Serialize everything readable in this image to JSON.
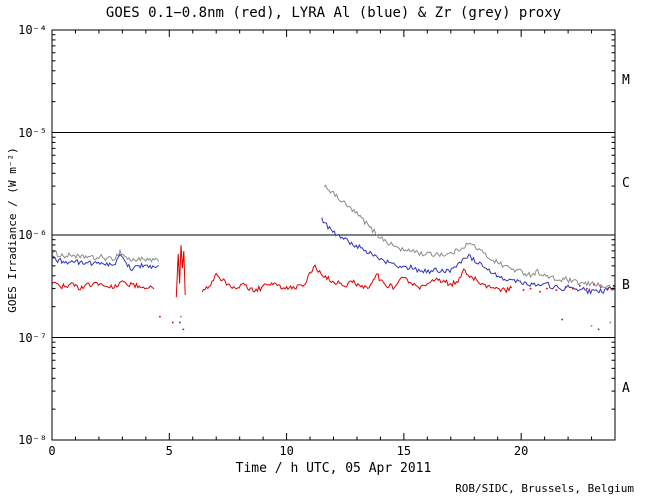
{
  "credit": "ROB/SIDC, Brussels, Belgium",
  "chart_data": {
    "type": "line",
    "title": "GOES 0.1−0.8nm (red), LYRA Al (blue) & Zr (grey) proxy",
    "xlabel": "Time / h UTC, 05 Apr 2011",
    "ylabel": "GOES Irradiance / (W m⁻²)",
    "xlim": [
      0,
      24
    ],
    "ylim": [
      1e-08,
      0.0001
    ],
    "grid": false,
    "legend": "none (series identified by colors in title)",
    "xticks": {
      "major": [
        {
          "t": 0,
          "label": "0"
        },
        {
          "t": 5,
          "label": "5"
        },
        {
          "t": 10,
          "label": "10"
        },
        {
          "t": 15,
          "label": "15"
        },
        {
          "t": 20,
          "label": "20"
        }
      ],
      "minor_step": 1
    },
    "yticks": [
      {
        "exp": -8,
        "label": "10⁻⁸"
      },
      {
        "exp": -7,
        "label": "10⁻⁷"
      },
      {
        "exp": -6,
        "label": "10⁻⁶"
      },
      {
        "exp": -5,
        "label": "10⁻⁵"
      },
      {
        "exp": -4,
        "label": "10⁻⁴"
      }
    ],
    "hlines": [
      1e-05,
      1e-06,
      1e-07
    ],
    "flare_class_labels": [
      {
        "label": "M",
        "v": 3.162e-05
      },
      {
        "label": "C",
        "v": 3.162e-06
      },
      {
        "label": "B",
        "v": 3.162e-07
      },
      {
        "label": "A",
        "v": 3.162e-08
      }
    ],
    "series": [
      {
        "name": "LYRA Zr proxy",
        "color": "#8c8c8c",
        "segments": [
          [
            [
              0.0,
              6.8e-07
            ],
            [
              0.3,
              6.4e-07
            ],
            [
              0.6,
              6.2e-07
            ],
            [
              0.9,
              6.4e-07
            ],
            [
              1.2,
              6e-07
            ],
            [
              1.5,
              6.2e-07
            ],
            [
              1.8,
              5.9e-07
            ],
            [
              2.1,
              6.1e-07
            ],
            [
              2.4,
              5.8e-07
            ],
            [
              2.7,
              6e-07
            ],
            [
              2.9,
              6.9e-07
            ],
            [
              3.1,
              6.2e-07
            ],
            [
              3.4,
              5.6e-07
            ],
            [
              3.7,
              5.9e-07
            ],
            [
              4.0,
              5.6e-07
            ],
            [
              4.3,
              5.7e-07
            ],
            [
              4.55,
              5.5e-07
            ]
          ],
          [
            [
              11.6,
              3.1e-06
            ],
            [
              11.8,
              2.8e-06
            ],
            [
              12.0,
              2.5e-06
            ],
            [
              12.2,
              2.3e-06
            ],
            [
              12.4,
              2.1e-06
            ],
            [
              12.6,
              1.9e-06
            ],
            [
              12.8,
              1.75e-06
            ],
            [
              13.0,
              1.6e-06
            ],
            [
              13.2,
              1.45e-06
            ],
            [
              13.4,
              1.3e-06
            ],
            [
              13.6,
              1.15e-06
            ],
            [
              13.8,
              1.05e-06
            ],
            [
              14.0,
              9.5e-07
            ],
            [
              14.2,
              8.8e-07
            ],
            [
              14.4,
              8.2e-07
            ],
            [
              14.6,
              7.8e-07
            ],
            [
              14.8,
              7.4e-07
            ],
            [
              15.0,
              7.1e-07
            ],
            [
              15.2,
              6.9e-07
            ],
            [
              15.4,
              7.2e-07
            ],
            [
              15.6,
              6.7e-07
            ],
            [
              15.8,
              6.5e-07
            ],
            [
              16.0,
              6.6e-07
            ],
            [
              16.2,
              6.4e-07
            ],
            [
              16.4,
              6.6e-07
            ],
            [
              16.6,
              6.5e-07
            ],
            [
              16.8,
              6.4e-07
            ],
            [
              17.0,
              6.6e-07
            ],
            [
              17.2,
              6.9e-07
            ],
            [
              17.4,
              7.4e-07
            ],
            [
              17.6,
              7.9e-07
            ],
            [
              17.8,
              8.2e-07
            ],
            [
              18.0,
              7.8e-07
            ],
            [
              18.2,
              7.2e-07
            ],
            [
              18.4,
              6.6e-07
            ],
            [
              18.6,
              6.1e-07
            ],
            [
              18.8,
              5.7e-07
            ],
            [
              19.0,
              5.4e-07
            ],
            [
              19.2,
              5.1e-07
            ],
            [
              19.4,
              4.9e-07
            ],
            [
              19.6,
              4.7e-07
            ],
            [
              19.8,
              4.5e-07
            ],
            [
              20.1,
              4.3e-07
            ],
            [
              20.4,
              4.1e-07
            ],
            [
              20.7,
              4.4e-07
            ],
            [
              21.0,
              4e-07
            ],
            [
              21.3,
              3.8e-07
            ],
            [
              21.6,
              3.6e-07
            ],
            [
              21.9,
              3.7e-07
            ],
            [
              22.2,
              3.5e-07
            ],
            [
              22.5,
              3.4e-07
            ],
            [
              22.8,
              3.3e-07
            ],
            [
              23.1,
              3.4e-07
            ],
            [
              23.4,
              3.2e-07
            ],
            [
              23.7,
              3.1e-07
            ],
            [
              24.0,
              3e-07
            ]
          ]
        ],
        "scatter": [
          [
            5.5,
            1.6e-07
          ],
          [
            23.0,
            1.3e-07
          ],
          [
            23.8,
            1.4e-07
          ]
        ]
      },
      {
        "name": "LYRA Al proxy",
        "color": "#3333bb",
        "segments": [
          [
            [
              0.0,
              6e-07
            ],
            [
              0.3,
              5.6e-07
            ],
            [
              0.6,
              5.4e-07
            ],
            [
              0.9,
              5.6e-07
            ],
            [
              1.2,
              5.3e-07
            ],
            [
              1.5,
              5.5e-07
            ],
            [
              1.8,
              5.2e-07
            ],
            [
              2.1,
              5.4e-07
            ],
            [
              2.4,
              5.1e-07
            ],
            [
              2.7,
              5.3e-07
            ],
            [
              2.9,
              6.2e-07
            ],
            [
              3.1,
              5.5e-07
            ],
            [
              3.4,
              4.7e-07
            ],
            [
              3.7,
              5.1e-07
            ],
            [
              4.0,
              4.9e-07
            ],
            [
              4.3,
              5e-07
            ],
            [
              4.55,
              4.8e-07
            ]
          ],
          [
            [
              11.5,
              1.4e-06
            ],
            [
              11.7,
              1.25e-06
            ],
            [
              11.9,
              1.12e-06
            ],
            [
              12.1,
              1.02e-06
            ],
            [
              12.3,
              9.5e-07
            ],
            [
              12.5,
              9e-07
            ],
            [
              12.7,
              8.5e-07
            ],
            [
              12.9,
              8e-07
            ],
            [
              13.1,
              7.6e-07
            ],
            [
              13.3,
              7.2e-07
            ],
            [
              13.5,
              6.8e-07
            ],
            [
              13.7,
              6.4e-07
            ],
            [
              13.9,
              6e-07
            ],
            [
              14.1,
              5.6e-07
            ],
            [
              14.3,
              5.4e-07
            ],
            [
              14.5,
              5.2e-07
            ],
            [
              14.7,
              5e-07
            ],
            [
              14.9,
              4.8e-07
            ],
            [
              15.1,
              4.7e-07
            ],
            [
              15.3,
              5e-07
            ],
            [
              15.5,
              4.6e-07
            ],
            [
              15.7,
              4.4e-07
            ],
            [
              15.9,
              4.5e-07
            ],
            [
              16.1,
              4.4e-07
            ],
            [
              16.3,
              4.6e-07
            ],
            [
              16.5,
              4.5e-07
            ],
            [
              16.7,
              4.4e-07
            ],
            [
              16.9,
              4.5e-07
            ],
            [
              17.1,
              4.7e-07
            ],
            [
              17.3,
              5.2e-07
            ],
            [
              17.5,
              5.8e-07
            ],
            [
              17.7,
              6.3e-07
            ],
            [
              17.9,
              5.9e-07
            ],
            [
              18.1,
              5.5e-07
            ],
            [
              18.3,
              5e-07
            ],
            [
              18.5,
              4.6e-07
            ],
            [
              18.7,
              4.3e-07
            ],
            [
              18.9,
              4.1e-07
            ],
            [
              19.1,
              3.9e-07
            ],
            [
              19.3,
              3.8e-07
            ],
            [
              19.5,
              3.7e-07
            ],
            [
              19.7,
              3.6e-07
            ],
            [
              19.9,
              3.5e-07
            ],
            [
              20.2,
              3.4e-07
            ],
            [
              20.5,
              3.3e-07
            ],
            [
              20.8,
              3.2e-07
            ],
            [
              21.1,
              3.3e-07
            ],
            [
              21.4,
              3.1e-07
            ],
            [
              21.7,
              3e-07
            ],
            [
              22.0,
              3.1e-07
            ],
            [
              22.3,
              2.9e-07
            ],
            [
              22.6,
              3e-07
            ],
            [
              22.9,
              2.8e-07
            ],
            [
              23.2,
              2.9e-07
            ],
            [
              23.5,
              2.8e-07
            ],
            [
              23.8,
              3e-07
            ],
            [
              24.0,
              2.9e-07
            ]
          ]
        ],
        "scatter": [
          [
            5.45,
            1.4e-07
          ],
          [
            5.6,
            1.2e-07
          ],
          [
            21.75,
            1.5e-07
          ],
          [
            23.3,
            1.2e-07
          ]
        ]
      },
      {
        "name": "GOES 0.1−0.8nm",
        "color": "#dd0000",
        "segments": [
          [
            [
              0.0,
              3.4e-07
            ],
            [
              0.3,
              3.2e-07
            ],
            [
              0.6,
              3.1e-07
            ],
            [
              0.9,
              3.3e-07
            ],
            [
              1.2,
              3e-07
            ],
            [
              1.5,
              3.2e-07
            ],
            [
              1.8,
              3.4e-07
            ],
            [
              2.1,
              3.3e-07
            ],
            [
              2.4,
              3.1e-07
            ],
            [
              2.7,
              3.2e-07
            ],
            [
              3.0,
              3.5e-07
            ],
            [
              3.3,
              3.3e-07
            ],
            [
              3.6,
              3.2e-07
            ],
            [
              3.9,
              3.1e-07
            ],
            [
              4.2,
              3.2e-07
            ],
            [
              4.35,
              3.1e-07
            ]
          ],
          [
            [
              5.3,
              2.4e-07
            ],
            [
              5.38,
              6.5e-07
            ],
            [
              5.44,
              3.2e-07
            ],
            [
              5.5,
              8.2e-07
            ],
            [
              5.56,
              4.5e-07
            ],
            [
              5.62,
              7.2e-07
            ],
            [
              5.68,
              2.6e-07
            ]
          ],
          [
            [
              6.4,
              2.9e-07
            ],
            [
              6.7,
              3e-07
            ],
            [
              7.0,
              4e-07
            ],
            [
              7.2,
              3.7e-07
            ],
            [
              7.5,
              3.3e-07
            ],
            [
              7.8,
              3.1e-07
            ],
            [
              8.1,
              3.3e-07
            ],
            [
              8.4,
              3e-07
            ],
            [
              8.7,
              2.9e-07
            ],
            [
              9.0,
              3.1e-07
            ],
            [
              9.3,
              3.4e-07
            ],
            [
              9.6,
              3.2e-07
            ],
            [
              10.0,
              3e-07
            ],
            [
              10.4,
              3.1e-07
            ],
            [
              10.8,
              3.3e-07
            ],
            [
              11.15,
              5e-07
            ],
            [
              11.35,
              4.5e-07
            ],
            [
              11.6,
              3.9e-07
            ],
            [
              11.9,
              3.6e-07
            ],
            [
              12.2,
              3.4e-07
            ],
            [
              12.5,
              3.2e-07
            ],
            [
              12.8,
              3.5e-07
            ],
            [
              13.1,
              3.2e-07
            ],
            [
              13.4,
              3e-07
            ],
            [
              13.7,
              3.6e-07
            ],
            [
              13.85,
              4.2e-07
            ],
            [
              14.0,
              3.6e-07
            ],
            [
              14.3,
              3.2e-07
            ],
            [
              14.6,
              3.1e-07
            ],
            [
              14.9,
              3.9e-07
            ],
            [
              15.2,
              3.5e-07
            ],
            [
              15.5,
              3.2e-07
            ],
            [
              15.8,
              3.1e-07
            ],
            [
              16.1,
              3.3e-07
            ],
            [
              16.4,
              3.8e-07
            ],
            [
              16.7,
              3.5e-07
            ],
            [
              17.0,
              3.3e-07
            ],
            [
              17.3,
              3.6e-07
            ],
            [
              17.55,
              4.4e-07
            ],
            [
              17.8,
              4e-07
            ],
            [
              18.1,
              3.6e-07
            ],
            [
              18.4,
              3.3e-07
            ],
            [
              18.7,
              3.1e-07
            ],
            [
              19.0,
              3e-07
            ],
            [
              19.3,
              2.9e-07
            ],
            [
              19.6,
              3e-07
            ]
          ]
        ],
        "scatter": [
          [
            4.6,
            1.6e-07
          ],
          [
            5.15,
            1.4e-07
          ],
          [
            20.1,
            2.9e-07
          ],
          [
            20.4,
            3e-07
          ],
          [
            20.8,
            2.8e-07
          ],
          [
            21.1,
            3e-07
          ],
          [
            21.5,
            2.9e-07
          ],
          [
            21.9,
            3.1e-07
          ],
          [
            22.2,
            3e-07
          ],
          [
            22.5,
            3.2e-07
          ],
          [
            22.8,
            3e-07
          ],
          [
            23.1,
            3.3e-07
          ],
          [
            23.4,
            3.1e-07
          ],
          [
            23.7,
            3e-07
          ],
          [
            23.95,
            3.2e-07
          ]
        ]
      }
    ]
  }
}
